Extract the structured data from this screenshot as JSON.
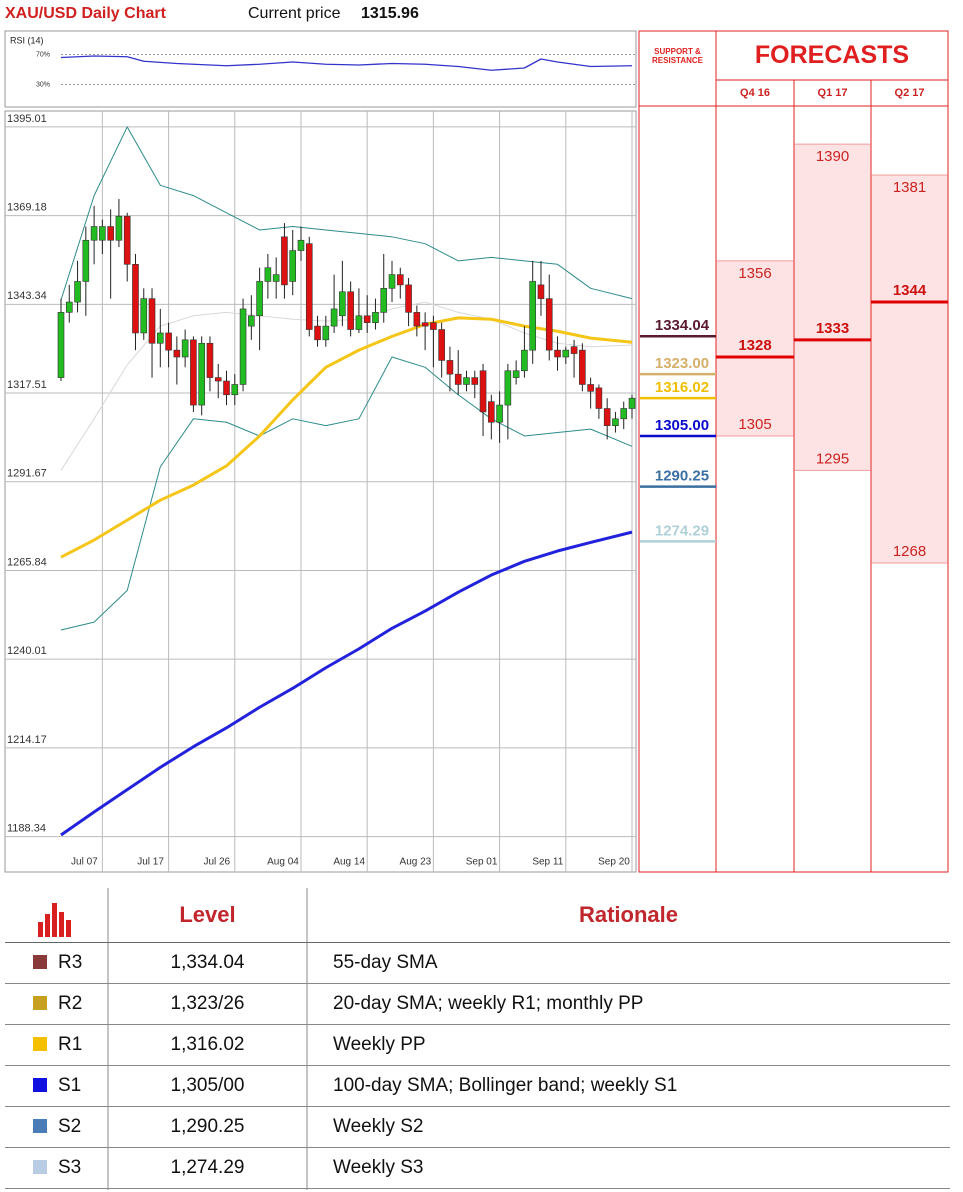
{
  "header": {
    "title": "XAU/USD Daily Chart",
    "price_label": "Current price",
    "price": 1315.96
  },
  "chart_data": [
    {
      "type": "line",
      "title": "RSI (14)",
      "xlim": [
        0,
        69
      ],
      "ylim": [
        0,
        100
      ],
      "yticks": [
        {
          "value": 70,
          "label": "70%"
        },
        {
          "value": 30,
          "label": "30%"
        }
      ],
      "series": [
        {
          "color": "#3333cc",
          "x": [
            0,
            4,
            8,
            10,
            14,
            18,
            20,
            24,
            28,
            32,
            36,
            40,
            44,
            48,
            52,
            56,
            58,
            60,
            64,
            69
          ],
          "values": [
            66,
            68,
            67,
            61,
            58,
            56,
            55,
            57,
            60,
            57,
            56,
            58,
            57,
            54,
            49,
            52,
            64,
            60,
            54,
            55
          ]
        }
      ]
    },
    {
      "type": "candlestick",
      "ylim": [
        1186,
        1396
      ],
      "yticks": [
        1395.01,
        1369.18,
        1343.34,
        1317.51,
        1291.67,
        1265.84,
        1240.01,
        1214.17,
        1188.34
      ],
      "categories": [
        null,
        null,
        null,
        null,
        null,
        "Jul 07",
        null,
        null,
        null,
        null,
        null,
        null,
        null,
        "Jul 17",
        null,
        null,
        null,
        null,
        null,
        null,
        null,
        "Jul 26",
        null,
        null,
        null,
        null,
        null,
        null,
        null,
        "Aug 04",
        null,
        null,
        null,
        null,
        null,
        null,
        null,
        "Aug 14",
        null,
        null,
        null,
        null,
        null,
        null,
        null,
        "Aug 23",
        null,
        null,
        null,
        null,
        null,
        null,
        null,
        "Sep 01",
        null,
        null,
        null,
        null,
        null,
        null,
        null,
        "Sep 11",
        null,
        null,
        null,
        null,
        null,
        null,
        null,
        "Sep 20"
      ],
      "up_color": "#22bb22",
      "down_color": "#dd1111",
      "open": [
        1322,
        1341,
        1344,
        1350,
        1362,
        1362,
        1366,
        1362,
        1369,
        1355,
        1335,
        1345,
        1332,
        1335,
        1330,
        1328,
        1333,
        1314,
        1332,
        1322,
        1321,
        1317,
        1320,
        1337,
        1340,
        1350,
        1350,
        1363,
        1350,
        1359,
        1361,
        1337,
        1333,
        1337,
        1340,
        1347,
        1336,
        1340,
        1338,
        1341,
        1348,
        1352,
        1349,
        1341,
        1338,
        1338,
        1336,
        1327,
        1323,
        1320,
        1322,
        1324,
        1315,
        1309,
        1314,
        1322,
        1324,
        1330,
        1349,
        1345,
        1330,
        1328,
        1331,
        1330,
        1320,
        1319,
        1313,
        1308,
        1310,
        1313
      ],
      "high": [
        1345,
        1349,
        1356,
        1366,
        1372,
        1368,
        1371,
        1374,
        1370,
        1358,
        1348,
        1348,
        1342,
        1338,
        1334,
        1336,
        1334,
        1334,
        1334,
        1326,
        1324,
        1323,
        1345,
        1346,
        1354,
        1358,
        1357,
        1367,
        1365,
        1366,
        1363,
        1340,
        1340,
        1352,
        1356,
        1350,
        1348,
        1346,
        1345,
        1358,
        1356,
        1354,
        1351,
        1343,
        1341,
        1340,
        1338,
        1331,
        1330,
        1324,
        1324,
        1326,
        1317,
        1318,
        1326,
        1327,
        1337,
        1356,
        1356,
        1352,
        1334,
        1331,
        1333,
        1332,
        1322,
        1320,
        1316,
        1312,
        1315,
        1317
      ],
      "low": [
        1321,
        1338,
        1341,
        1340,
        1355,
        1358,
        1345,
        1360,
        1350,
        1330,
        1333,
        1322,
        1325,
        1325,
        1320,
        1325,
        1312,
        1311,
        1318,
        1316,
        1314,
        1314,
        1318,
        1333,
        1330,
        1345,
        1345,
        1345,
        1346,
        1356,
        1334,
        1331,
        1331,
        1335,
        1337,
        1334,
        1335,
        1335,
        1336,
        1338,
        1344,
        1345,
        1337,
        1334,
        1330,
        1325,
        1322,
        1318,
        1317,
        1318,
        1316,
        1305,
        1304,
        1303,
        1304,
        1320,
        1322,
        1326,
        1340,
        1327,
        1324,
        1326,
        1322,
        1318,
        1313,
        1310,
        1304,
        1306,
        1307,
        1310
      ],
      "close": [
        1341,
        1344,
        1350,
        1362,
        1366,
        1366,
        1362,
        1369,
        1355,
        1335,
        1345,
        1332,
        1335,
        1330,
        1328,
        1333,
        1314,
        1332,
        1322,
        1321,
        1317,
        1320,
        1342,
        1340,
        1350,
        1354,
        1352,
        1349,
        1359,
        1362,
        1336,
        1333,
        1337,
        1342,
        1347,
        1336,
        1340,
        1338,
        1341,
        1348,
        1352,
        1349,
        1341,
        1337,
        1337,
        1336,
        1327,
        1323,
        1320,
        1322,
        1320,
        1312,
        1309,
        1314,
        1324,
        1324,
        1330,
        1350,
        1345,
        1330,
        1328,
        1330,
        1329,
        1320,
        1318,
        1313,
        1308,
        1310,
        1313,
        1316
      ],
      "lines": [
        {
          "color": "#d8d8d8",
          "width": 1,
          "x": [
            0,
            4,
            8,
            12,
            16,
            20,
            24,
            28,
            32,
            36,
            40,
            44,
            48,
            52,
            56,
            60,
            64,
            69
          ],
          "values": [
            1295,
            1310,
            1325.7,
            1337,
            1340,
            1341,
            1340,
            1339,
            1338.5,
            1339,
            1342,
            1344,
            1341,
            1339,
            1335,
            1332,
            1331,
            1331.5
          ]
        },
        {
          "color": "#2e8b8b",
          "width": 1,
          "x": [
            0,
            4,
            8,
            12,
            16,
            20,
            24,
            28,
            32,
            36,
            40,
            44,
            48,
            52,
            56,
            60,
            64,
            69
          ],
          "values": [
            1344.6,
            1375,
            1395,
            1378,
            1375,
            1370,
            1365,
            1366,
            1365,
            1364,
            1363,
            1361,
            1356,
            1357,
            1356,
            1355,
            1348,
            1345
          ]
        },
        {
          "color": "#2e8b8b",
          "width": 1,
          "x": [
            0,
            4,
            8,
            12,
            16,
            20,
            24,
            28,
            32,
            36,
            40,
            44,
            48,
            52,
            56,
            60,
            64,
            69
          ],
          "values": [
            1248.5,
            1250.8,
            1260,
            1296,
            1310,
            1309,
            1305,
            1310,
            1308,
            1310,
            1328,
            1325,
            1317,
            1310,
            1305,
            1306,
            1307,
            1302
          ]
        },
        {
          "color": "#f5c518",
          "width": 3,
          "x": [
            0,
            4,
            8,
            12,
            16,
            20,
            24,
            28,
            32,
            36,
            40,
            44,
            48,
            52,
            56,
            60,
            64,
            69
          ],
          "values": [
            1269.7,
            1274.7,
            1280.5,
            1286.3,
            1290.7,
            1296.3,
            1305,
            1315.5,
            1325,
            1330,
            1334,
            1337.5,
            1339.4,
            1339,
            1337,
            1335.5,
            1333.5,
            1332.3
          ]
        },
        {
          "color": "#2222dd",
          "width": 3,
          "x": [
            0,
            4,
            8,
            12,
            16,
            20,
            24,
            28,
            32,
            36,
            40,
            44,
            48,
            52,
            56,
            60,
            64,
            69
          ],
          "values": [
            1188.8,
            1195.5,
            1202,
            1208.5,
            1214.5,
            1220,
            1226,
            1231.5,
            1237.5,
            1243,
            1249,
            1254,
            1259.5,
            1264.5,
            1268.5,
            1271.5,
            1274,
            1277
          ]
        }
      ]
    },
    {
      "type": "levels",
      "title": "SUPPORT & RESISTANCE",
      "ylim": [
        1186,
        1396
      ],
      "values": [
        1334.04,
        1323.0,
        1316.02,
        1305.0,
        1290.25,
        1274.29
      ],
      "value_labels": [
        "1334.04",
        "1323.00",
        "1316.02",
        "1305.00",
        "1290.25",
        "1274.29"
      ],
      "colors": [
        "#5a1a2e",
        "#d4b06a",
        "#f0c000",
        "#0a0acc",
        "#3a6fa0",
        "#b0d0d8"
      ]
    },
    {
      "type": "range",
      "title": "FORECASTS",
      "ylim": [
        1186,
        1396
      ],
      "categories": [
        "Q4 16",
        "Q1 17",
        "Q2 17"
      ],
      "high": [
        1356,
        1390,
        1381
      ],
      "mean": [
        1328,
        1333,
        1344
      ],
      "low": [
        1305,
        1295,
        1268
      ]
    }
  ],
  "table": {
    "headers": [
      "Level",
      "Rationale"
    ],
    "rows": [
      {
        "name": "R3",
        "level": "1,334.04",
        "rationale": "55-day SMA",
        "color": "#8b3a3a"
      },
      {
        "name": "R2",
        "level": "1,323/26",
        "rationale": "20-day SMA; weekly R1; monthly PP",
        "color": "#c8a020"
      },
      {
        "name": "R1",
        "level": "1,316.02",
        "rationale": "Weekly PP",
        "color": "#f5c000"
      },
      {
        "name": "S1",
        "level": "1,305/00",
        "rationale": "100-day SMA; Bollinger band; weekly S1",
        "color": "#1010e0"
      },
      {
        "name": "S2",
        "level": "1,290.25",
        "rationale": "Weekly S2",
        "color": "#4a7cb8"
      },
      {
        "name": "S3",
        "level": "1,274.29",
        "rationale": "Weekly S3",
        "color": "#b8cce4"
      }
    ]
  }
}
